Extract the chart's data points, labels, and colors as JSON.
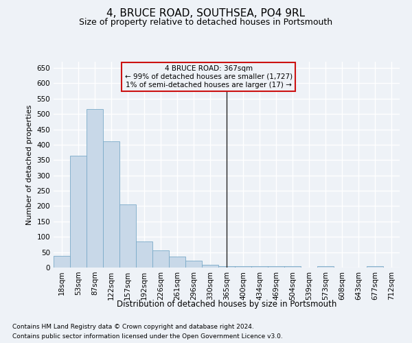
{
  "title": "4, BRUCE ROAD, SOUTHSEA, PO4 9RL",
  "subtitle": "Size of property relative to detached houses in Portsmouth",
  "xlabel": "Distribution of detached houses by size in Portsmouth",
  "ylabel": "Number of detached properties",
  "bar_color": "#c8d8e8",
  "bar_edge_color": "#7aaac8",
  "categories": [
    "18sqm",
    "53sqm",
    "87sqm",
    "122sqm",
    "157sqm",
    "192sqm",
    "226sqm",
    "261sqm",
    "296sqm",
    "330sqm",
    "365sqm",
    "400sqm",
    "434sqm",
    "469sqm",
    "504sqm",
    "539sqm",
    "573sqm",
    "608sqm",
    "643sqm",
    "677sqm",
    "712sqm"
  ],
  "values": [
    38,
    365,
    515,
    410,
    205,
    84,
    55,
    35,
    22,
    10,
    5,
    5,
    5,
    5,
    5,
    0,
    5,
    0,
    0,
    5,
    0
  ],
  "vline_x": 10,
  "annotation_line1": "4 BRUCE ROAD: 367sqm",
  "annotation_line2": "← 99% of detached houses are smaller (1,727)",
  "annotation_line3": "1% of semi-detached houses are larger (17) →",
  "ylim": [
    0,
    670
  ],
  "yticks": [
    0,
    50,
    100,
    150,
    200,
    250,
    300,
    350,
    400,
    450,
    500,
    550,
    600,
    650
  ],
  "footer1": "Contains HM Land Registry data © Crown copyright and database right 2024.",
  "footer2": "Contains public sector information licensed under the Open Government Licence v3.0.",
  "background_color": "#eef2f7",
  "grid_color": "#ffffff",
  "title_fontsize": 11,
  "subtitle_fontsize": 9,
  "axis_fontsize": 8,
  "tick_fontsize": 7.5,
  "annotation_fontsize": 7.5,
  "footer_fontsize": 6.5
}
